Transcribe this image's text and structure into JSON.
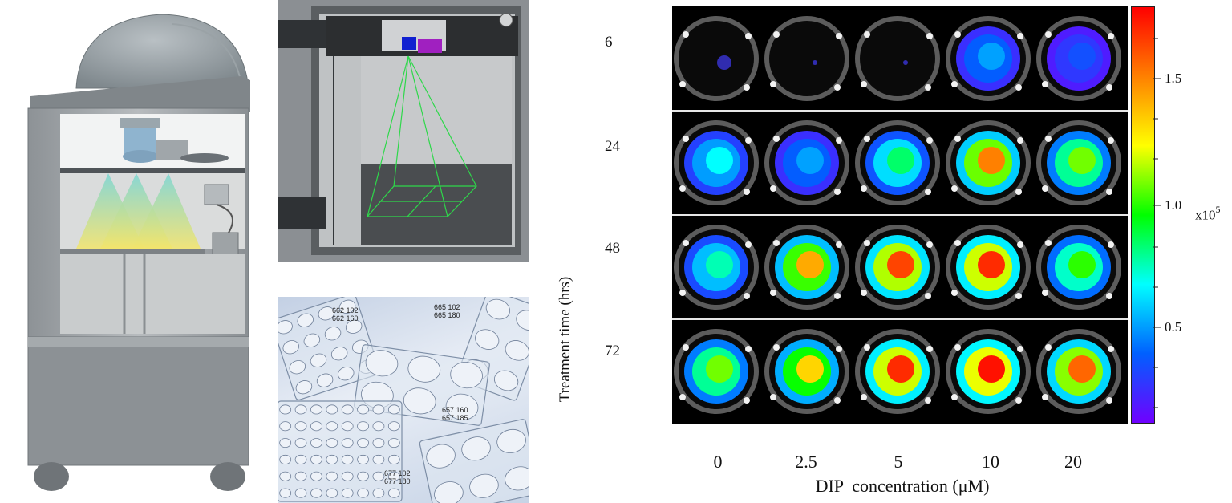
{
  "time_axis": {
    "label": "Treatment time (hrs)",
    "values": [
      "6",
      "24",
      "48",
      "72"
    ]
  },
  "concentration_axis": {
    "label": "DIP  concentration (μM)",
    "values": [
      "0",
      "2.5",
      "5",
      "10",
      "20"
    ]
  },
  "colorbar": {
    "ticks": [
      "1.5",
      "1.0",
      "0.5"
    ],
    "exponent_label": "x10",
    "exponent_power": "5",
    "colors": [
      "#ff0000",
      "#ff8000",
      "#ffff00",
      "#00ff00",
      "#00ffff",
      "#0060ff",
      "#7000ff"
    ]
  },
  "plate_codes": [
    {
      "line1": "662 102",
      "line2": "662 160"
    },
    {
      "line1": "665 102",
      "line2": "665 180"
    },
    {
      "line1": "657 160",
      "line2": "657 185"
    },
    {
      "line1": "677 102",
      "line2": "677 180"
    }
  ],
  "well_intensity": {
    "rows": [
      "6",
      "24",
      "48",
      "72"
    ],
    "cols": [
      "0",
      "2.5",
      "5",
      "10",
      "20"
    ],
    "values": [
      [
        0.05,
        0.02,
        0.03,
        0.25,
        0.15
      ],
      [
        0.35,
        0.25,
        0.45,
        0.85,
        0.6
      ],
      [
        0.4,
        0.8,
        0.92,
        0.95,
        0.55
      ],
      [
        0.6,
        0.75,
        0.95,
        0.98,
        0.88
      ]
    ]
  }
}
